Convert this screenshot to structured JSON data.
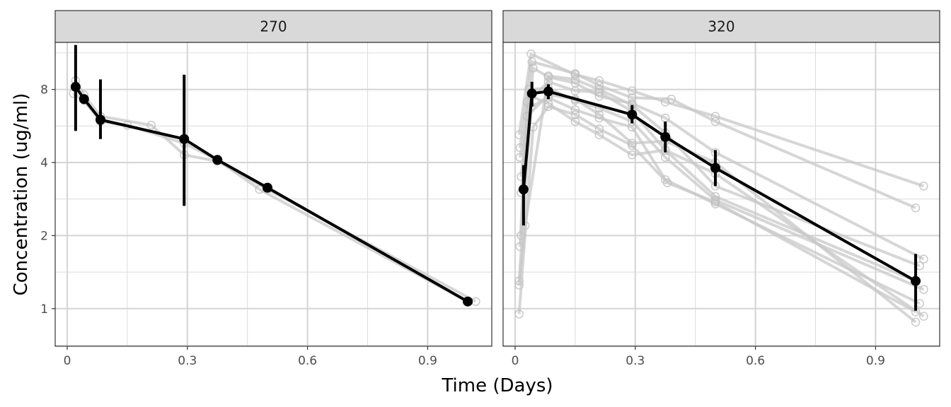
{
  "chart_data": {
    "type": "line",
    "xlabel": "Time (Days)",
    "ylabel": "Concentration (ug/ml)",
    "y_scale": "log2",
    "ylim": [
      0.7,
      12.5
    ],
    "xlim": [
      -0.03,
      1.06
    ],
    "x_ticks": [
      0,
      0.3,
      0.6,
      0.9
    ],
    "x_tick_labels": [
      "0",
      "0.3",
      "0.6",
      "0.9"
    ],
    "y_ticks": [
      1,
      2,
      4,
      8
    ],
    "y_tick_labels": [
      "1",
      "2",
      "4",
      "8"
    ],
    "grid": true,
    "colors": {
      "mean_line": "#000000",
      "individual_line": "#c8c8c8",
      "strip_fill": "#d9d9d9",
      "panel_border": "#333333",
      "grid": "#dcdcdc"
    },
    "panels": [
      {
        "strip": "270",
        "mean": {
          "x": [
            0.021,
            0.042,
            0.083,
            0.292,
            0.375,
            0.5,
            1.0
          ],
          "y": [
            8.2,
            7.3,
            6.0,
            5.0,
            4.1,
            3.15,
            1.07
          ],
          "err_low": [
            5.4,
            null,
            5.0,
            2.65,
            null,
            null,
            null
          ],
          "err_high": [
            12.2,
            null,
            8.8,
            9.2,
            null,
            null,
            null
          ]
        },
        "individuals": [
          {
            "x": [
              0.021,
              0.042,
              0.083,
              0.21,
              0.292,
              0.375,
              0.5,
              1.02
            ],
            "y": [
              8.7,
              7.6,
              6.2,
              5.7,
              4.3,
              4.05,
              3.1,
              1.07
            ]
          },
          {
            "x": [
              0.015,
              0.042,
              0.083,
              0.15,
              0.292,
              0.375,
              0.48,
              1.0
            ],
            "y": [
              7.7,
              7.2,
              5.9,
              5.7,
              4.8,
              4.1,
              3.1,
              1.07
            ]
          }
        ]
      },
      {
        "strip": "320",
        "mean": {
          "x": [
            0.021,
            0.042,
            0.083,
            0.292,
            0.375,
            0.5,
            1.0
          ],
          "y": [
            3.1,
            7.7,
            7.85,
            6.3,
            5.1,
            3.8,
            1.3
          ],
          "err_low": [
            2.2,
            6.8,
            7.3,
            5.8,
            4.4,
            3.2,
            0.98
          ],
          "err_high": [
            3.9,
            8.6,
            8.4,
            6.9,
            5.9,
            4.5,
            1.68
          ]
        },
        "individuals": [
          {
            "x": [
              0.01,
              0.04,
              0.15,
              0.21,
              0.292,
              0.375,
              0.5,
              1.02
            ],
            "y": [
              5.2,
              11.2,
              9.2,
              8.7,
              7.9,
              7.1,
              6.2,
              3.2
            ]
          },
          {
            "x": [
              0.012,
              0.042,
              0.15,
              0.21,
              0.292,
              0.39,
              0.5,
              1.0
            ],
            "y": [
              4.6,
              10.4,
              9.3,
              8.3,
              7.4,
              7.3,
              5.9,
              2.6
            ]
          },
          {
            "x": [
              0.015,
              0.045,
              0.083,
              0.15,
              0.21,
              0.292,
              0.375,
              0.5,
              1.02
            ],
            "y": [
              3.0,
              9.8,
              9.0,
              8.5,
              7.5,
              7.0,
              6.1,
              4.4,
              1.6
            ]
          },
          {
            "x": [
              0.01,
              0.025,
              0.083,
              0.15,
              0.21,
              0.292,
              0.375,
              0.5,
              1.01
            ],
            "y": [
              1.25,
              2.2,
              9.1,
              8.8,
              8.0,
              6.9,
              5.3,
              3.2,
              1.5
            ]
          },
          {
            "x": [
              0.012,
              0.03,
              0.083,
              0.15,
              0.21,
              0.292,
              0.375,
              0.5,
              1.0
            ],
            "y": [
              1.8,
              7.1,
              8.6,
              7.9,
              7.8,
              6.5,
              4.5,
              2.9,
              1.3
            ]
          },
          {
            "x": [
              0.015,
              0.035,
              0.083,
              0.15,
              0.21,
              0.292,
              0.375,
              0.5,
              1.02
            ],
            "y": [
              2.0,
              8.0,
              8.1,
              7.2,
              6.7,
              5.9,
              4.2,
              2.8,
              1.2
            ]
          },
          {
            "x": [
              0.01,
              0.04,
              0.083,
              0.15,
              0.21,
              0.292,
              0.375,
              0.5,
              1.01
            ],
            "y": [
              1.3,
              6.8,
              7.4,
              6.6,
              6.1,
              5.6,
              3.4,
              2.7,
              1.05
            ]
          },
          {
            "x": [
              0.01,
              0.045,
              0.083,
              0.15,
              0.21,
              0.292,
              0.38,
              0.5,
              1.0
            ],
            "y": [
              0.95,
              5.6,
              6.8,
              6.3,
              5.5,
              4.7,
              3.3,
              2.75,
              0.97
            ]
          },
          {
            "x": [
              0.012,
              0.04,
              0.083,
              0.15,
              0.21,
              0.292,
              0.375,
              0.5,
              1.02
            ],
            "y": [
              4.2,
              7.5,
              7.0,
              5.9,
              5.2,
              4.3,
              4.5,
              3.6,
              0.93
            ]
          },
          {
            "x": [
              0.015,
              0.03,
              0.083,
              0.15,
              0.21,
              0.292,
              0.375,
              0.5,
              1.0
            ],
            "y": [
              3.5,
              6.2,
              7.6,
              7.3,
              6.3,
              4.8,
              4.9,
              4.0,
              0.88
            ]
          }
        ]
      }
    ]
  }
}
